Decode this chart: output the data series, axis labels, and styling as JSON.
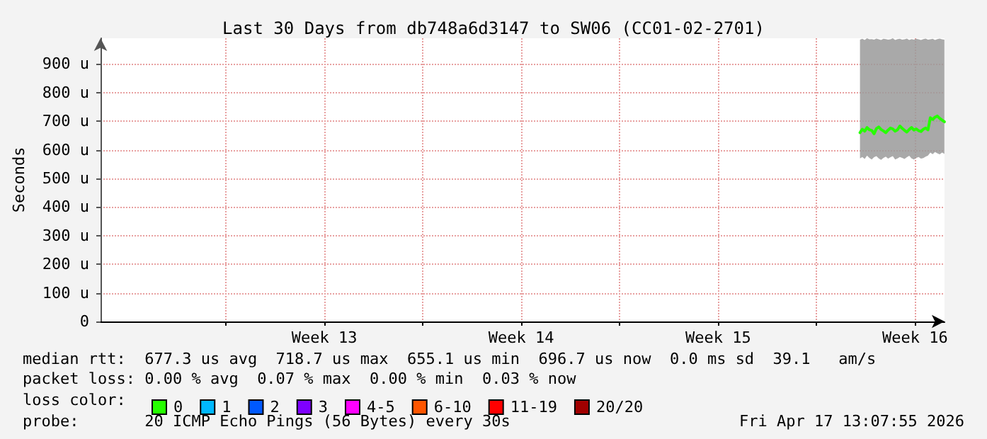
{
  "chart_data": {
    "type": "line",
    "title": "Last 30 Days from db748a6d3147 to SW06 (CC01-02-2701)",
    "ylabel": "Seconds",
    "legend_title": "loss color:",
    "x": [
      "2026-04-14T13:00",
      "2026-04-14T15:00",
      "2026-04-14T17:00",
      "2026-04-14T19:00",
      "2026-04-14T21:00",
      "2026-04-14T23:00",
      "2026-04-15T01:00",
      "2026-04-15T03:00",
      "2026-04-15T05:00",
      "2026-04-15T07:00",
      "2026-04-15T09:00",
      "2026-04-15T11:00",
      "2026-04-15T13:00",
      "2026-04-15T15:00",
      "2026-04-15T17:00",
      "2026-04-15T19:00",
      "2026-04-15T21:00",
      "2026-04-15T23:00",
      "2026-04-16T01:00",
      "2026-04-16T03:00",
      "2026-04-16T05:00",
      "2026-04-16T07:00",
      "2026-04-16T09:00",
      "2026-04-16T11:00",
      "2026-04-16T13:00",
      "2026-04-16T15:00",
      "2026-04-16T17:00",
      "2026-04-16T19:00",
      "2026-04-16T21:00",
      "2026-04-16T23:00",
      "2026-04-17T01:00",
      "2026-04-17T03:00",
      "2026-04-17T05:00",
      "2026-04-17T07:00",
      "2026-04-17T09:00",
      "2026-04-17T11:00",
      "2026-04-17T13:00"
    ],
    "series": [
      {
        "name": "0",
        "color": "#26ff00",
        "values": [
          660,
          672,
          665,
          678,
          670,
          668,
          656,
          674,
          680,
          671,
          666,
          660,
          669,
          676,
          673,
          665,
          670,
          683,
          675,
          668,
          662,
          671,
          678,
          669,
          673,
          667,
          664,
          672,
          676,
          670,
          712,
          706,
          714,
          718,
          710,
          704,
          698
        ],
        "lower": [
          570,
          575,
          568,
          580,
          572,
          566,
          574,
          578,
          570,
          565,
          572,
          576,
          569,
          574,
          578,
          566,
          570,
          575,
          572,
          568,
          574,
          579,
          570,
          566,
          572,
          575,
          569,
          571,
          576,
          580,
          590,
          585,
          592,
          588,
          584,
          590,
          586
        ],
        "upper": [
          985,
          988,
          984,
          990,
          986,
          987,
          985,
          989,
          986,
          984,
          988,
          987,
          985,
          986,
          990,
          984,
          987,
          988,
          985,
          986,
          989,
          984,
          987,
          985,
          988,
          986,
          984,
          987,
          989,
          985,
          986,
          988,
          984,
          987,
          989,
          986,
          985
        ]
      },
      {
        "name": "1",
        "color": "#00b8ff",
        "values": [
          null,
          null,
          null,
          null,
          null,
          null,
          null,
          null,
          null,
          null,
          null,
          null,
          null,
          null,
          null,
          null,
          null,
          null,
          null,
          null,
          null,
          null,
          null,
          null,
          null,
          null,
          null,
          null,
          null,
          null,
          null,
          null,
          null,
          null,
          null,
          null,
          null
        ]
      },
      {
        "name": "2",
        "color": "#0059ff",
        "values": [
          null,
          null,
          null,
          null,
          null,
          null,
          null,
          null,
          null,
          null,
          null,
          null,
          null,
          null,
          null,
          null,
          null,
          null,
          null,
          null,
          null,
          null,
          null,
          null,
          null,
          null,
          null,
          null,
          null,
          null,
          null,
          null,
          null,
          null,
          null,
          null,
          null
        ]
      },
      {
        "name": "3",
        "color": "#7e00ff",
        "values": [
          null,
          null,
          null,
          null,
          null,
          null,
          null,
          null,
          null,
          null,
          null,
          null,
          null,
          null,
          null,
          null,
          null,
          null,
          null,
          null,
          null,
          null,
          null,
          null,
          null,
          null,
          null,
          null,
          null,
          null,
          null,
          null,
          null,
          null,
          null,
          null,
          null
        ]
      },
      {
        "name": "4-5",
        "color": "#ff00ff",
        "values": [
          null,
          null,
          null,
          null,
          null,
          null,
          null,
          null,
          null,
          null,
          null,
          null,
          null,
          null,
          null,
          null,
          null,
          null,
          null,
          null,
          null,
          null,
          null,
          null,
          null,
          null,
          null,
          null,
          null,
          null,
          null,
          null,
          null,
          null,
          null,
          null,
          null
        ]
      },
      {
        "name": "6-10",
        "color": "#ff5500",
        "values": [
          null,
          null,
          null,
          null,
          null,
          null,
          null,
          null,
          null,
          null,
          null,
          null,
          null,
          null,
          null,
          null,
          null,
          null,
          null,
          null,
          null,
          null,
          null,
          null,
          null,
          null,
          null,
          null,
          null,
          null,
          null,
          null,
          null,
          null,
          null,
          null,
          null
        ]
      },
      {
        "name": "11-19",
        "color": "#ff0000",
        "values": [
          null,
          null,
          null,
          null,
          null,
          null,
          null,
          null,
          null,
          null,
          null,
          null,
          null,
          null,
          null,
          null,
          null,
          null,
          null,
          null,
          null,
          null,
          null,
          null,
          null,
          null,
          null,
          null,
          null,
          null,
          null,
          null,
          null,
          null,
          null,
          null,
          null
        ]
      },
      {
        "name": "20/20",
        "color": "#a10000",
        "values": [
          null,
          null,
          null,
          null,
          null,
          null,
          null,
          null,
          null,
          null,
          null,
          null,
          null,
          null,
          null,
          null,
          null,
          null,
          null,
          null,
          null,
          null,
          null,
          null,
          null,
          null,
          null,
          null,
          null,
          null,
          null,
          null,
          null,
          null,
          null,
          null,
          null
        ]
      }
    ],
    "xlim": [
      "2026-03-18T13:07",
      "2026-04-17T13:07"
    ],
    "xticks": [
      {
        "value": "2026-03-23T00:00",
        "label": null
      },
      {
        "value": "2026-03-26T12:00",
        "label": "Week 13"
      },
      {
        "value": "2026-03-30T00:00",
        "label": null
      },
      {
        "value": "2026-04-02T12:00",
        "label": "Week 14"
      },
      {
        "value": "2026-04-06T00:00",
        "label": null
      },
      {
        "value": "2026-04-09T12:00",
        "label": "Week 15"
      },
      {
        "value": "2026-04-13T00:00",
        "label": null
      },
      {
        "value": "2026-04-16T12:00",
        "label": "Week 16"
      }
    ],
    "ylim": [
      0,
      990
    ],
    "yticks": [
      0,
      {
        "value": 100,
        "label": "100 u"
      },
      {
        "value": 200,
        "label": "200 u"
      },
      {
        "value": 300,
        "label": "300 u"
      },
      {
        "value": 400,
        "label": "400 u"
      },
      {
        "value": 500,
        "label": "500 u"
      },
      {
        "value": 600,
        "label": "600 u"
      },
      {
        "value": 700,
        "label": "700 u"
      },
      {
        "value": 800,
        "label": "800 u"
      },
      {
        "value": 900,
        "label": "900 u"
      }
    ],
    "grid": true,
    "legend": "bottom",
    "marker": "none",
    "line_style": "solid",
    "annotations": [
      "median rtt:  677.3 us avg  718.7 us max  655.1 us min  696.7 us now  0.0 ms sd  39.1   am/s",
      "packet loss: 0.00 % avg  0.07 % max  0.00 % min  0.03 % now",
      "probe:       20 ICMP Echo Pings (56 Bytes) every 30s",
      "Fri Apr 17 13:07:55 2026"
    ]
  }
}
